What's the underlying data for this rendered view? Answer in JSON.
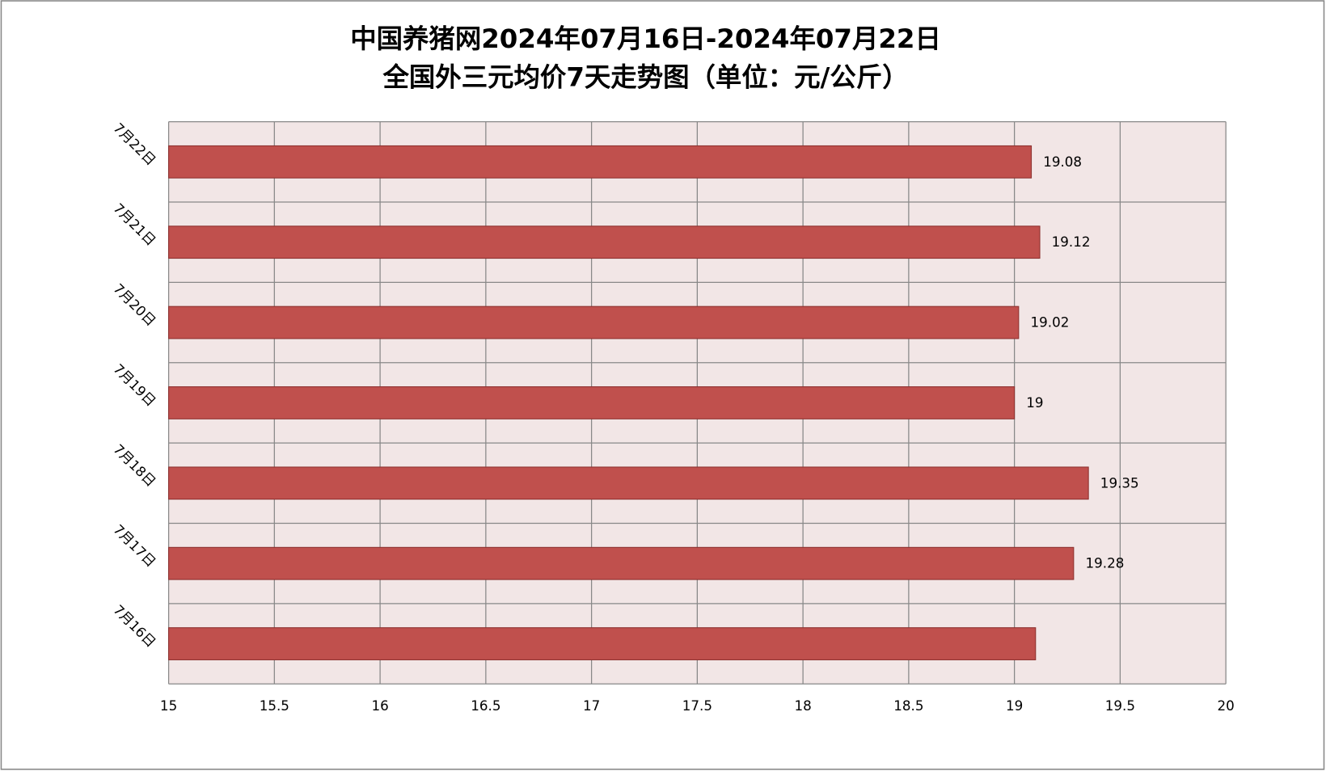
{
  "chart_data": {
    "type": "barh",
    "title_lines": [
      "中国养猪网2024年07月16日-2024年07月22日",
      "全国外三元均价7天走势图（单位：元/公斤）"
    ],
    "categories": [
      "7月16日",
      "7月17日",
      "7月18日",
      "7月19日",
      "7月20日",
      "7月21日",
      "7月22日"
    ],
    "values": [
      19.1,
      19.28,
      19.35,
      19,
      19.02,
      19.12,
      19.08
    ],
    "value_labels": [
      null,
      "19.28",
      "19.35",
      "19",
      "19.02",
      "19.12",
      "19.08"
    ],
    "color": "#c0504d",
    "xlim": [
      15,
      20
    ],
    "xticks": [
      15,
      15.5,
      16,
      16.5,
      17,
      17.5,
      18,
      18.5,
      19,
      19.5,
      20
    ],
    "grid": true
  }
}
